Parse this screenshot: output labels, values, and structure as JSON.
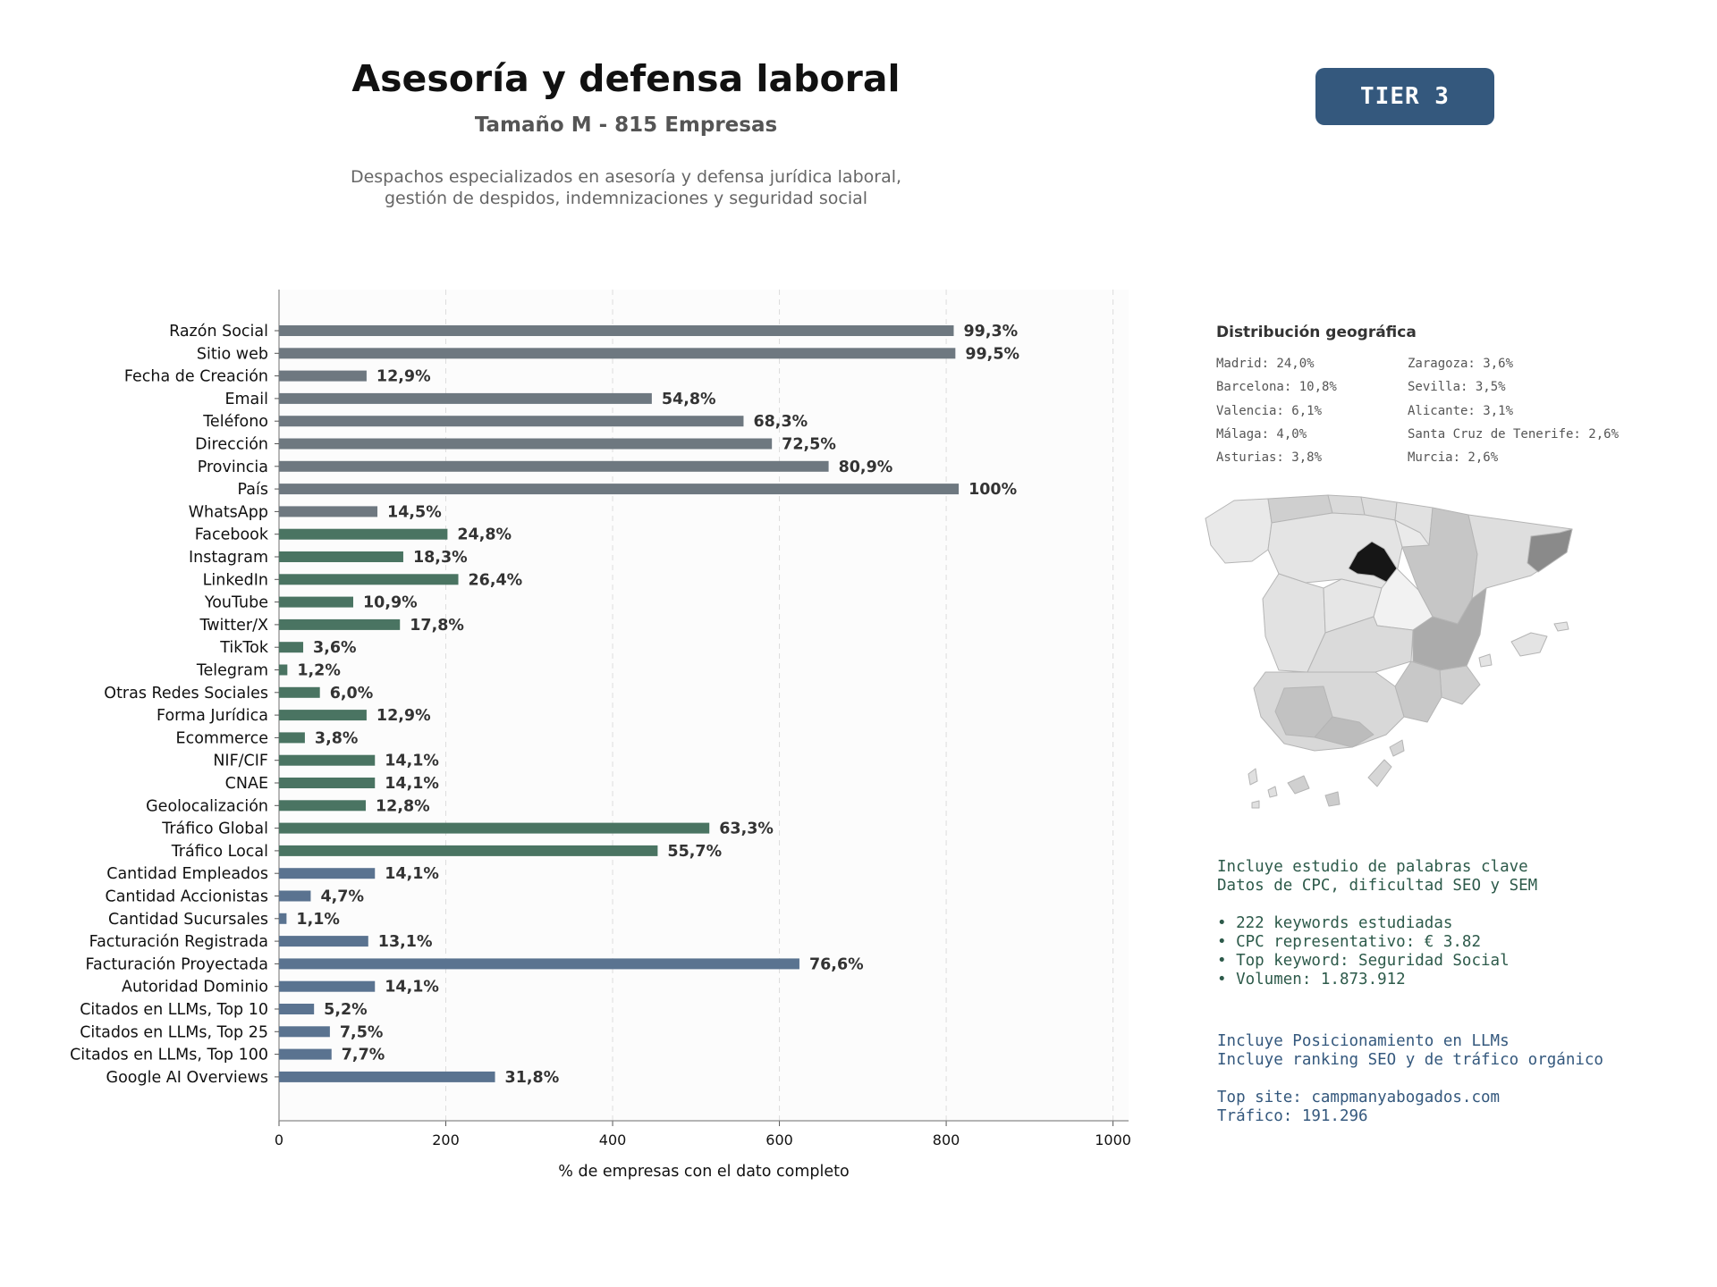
{
  "header": {
    "title": "Asesoría y defensa laboral",
    "subtitle": "Tamaño M - 815 Empresas",
    "description_lines": [
      "Despachos especializados en asesoría y defensa jurídica laboral,",
      "gestión de despidos, indemnizaciones y seguridad social"
    ]
  },
  "tier_badge": "TIER 3",
  "colors": {
    "basic": "#6e7880",
    "social": "#4a7462",
    "business": "#5a7390",
    "keywords_text": "#2d5a4a",
    "llm_text": "#34587d",
    "badge": "#34587d"
  },
  "chart_data": {
    "type": "bar",
    "orientation": "horizontal",
    "xlabel": "% de empresas con el dato completo",
    "xlim": [
      0,
      1000
    ],
    "xticks": [
      0,
      200,
      400,
      600,
      800,
      1000
    ],
    "grid": "vertical dashed",
    "bars": [
      {
        "label": "Razón Social",
        "value": 809,
        "pct": "99,3%",
        "group": "basic"
      },
      {
        "label": "Sitio web",
        "value": 811,
        "pct": "99,5%",
        "group": "basic"
      },
      {
        "label": "Fecha de Creación",
        "value": 105,
        "pct": "12,9%",
        "group": "basic"
      },
      {
        "label": "Email",
        "value": 447,
        "pct": "54,8%",
        "group": "basic"
      },
      {
        "label": "Teléfono",
        "value": 557,
        "pct": "68,3%",
        "group": "basic"
      },
      {
        "label": "Dirección",
        "value": 591,
        "pct": "72,5%",
        "group": "basic"
      },
      {
        "label": "Provincia",
        "value": 659,
        "pct": "80,9%",
        "group": "basic"
      },
      {
        "label": "País",
        "value": 815,
        "pct": "100%",
        "group": "basic"
      },
      {
        "label": "WhatsApp",
        "value": 118,
        "pct": "14,5%",
        "group": "basic"
      },
      {
        "label": "Facebook",
        "value": 202,
        "pct": "24,8%",
        "group": "social"
      },
      {
        "label": "Instagram",
        "value": 149,
        "pct": "18,3%",
        "group": "social"
      },
      {
        "label": "LinkedIn",
        "value": 215,
        "pct": "26,4%",
        "group": "social"
      },
      {
        "label": "YouTube",
        "value": 89,
        "pct": "10,9%",
        "group": "social"
      },
      {
        "label": "Twitter/X",
        "value": 145,
        "pct": "17,8%",
        "group": "social"
      },
      {
        "label": "TikTok",
        "value": 29,
        "pct": "3,6%",
        "group": "social"
      },
      {
        "label": "Telegram",
        "value": 10,
        "pct": "1,2%",
        "group": "social"
      },
      {
        "label": "Otras Redes Sociales",
        "value": 49,
        "pct": "6,0%",
        "group": "social"
      },
      {
        "label": "Forma Jurídica",
        "value": 105,
        "pct": "12,9%",
        "group": "social"
      },
      {
        "label": "Ecommerce",
        "value": 31,
        "pct": "3,8%",
        "group": "social"
      },
      {
        "label": "NIF/CIF",
        "value": 115,
        "pct": "14,1%",
        "group": "social"
      },
      {
        "label": "CNAE",
        "value": 115,
        "pct": "14,1%",
        "group": "social"
      },
      {
        "label": "Geolocalización",
        "value": 104,
        "pct": "12,8%",
        "group": "social"
      },
      {
        "label": "Tráfico Global",
        "value": 516,
        "pct": "63,3%",
        "group": "social"
      },
      {
        "label": "Tráfico Local",
        "value": 454,
        "pct": "55,7%",
        "group": "social"
      },
      {
        "label": "Cantidad Empleados",
        "value": 115,
        "pct": "14,1%",
        "group": "business"
      },
      {
        "label": "Cantidad Accionistas",
        "value": 38,
        "pct": "4,7%",
        "group": "business"
      },
      {
        "label": "Cantidad Sucursales",
        "value": 9,
        "pct": "1,1%",
        "group": "business"
      },
      {
        "label": "Facturación Registrada",
        "value": 107,
        "pct": "13,1%",
        "group": "business"
      },
      {
        "label": "Facturación Proyectada",
        "value": 624,
        "pct": "76,6%",
        "group": "business"
      },
      {
        "label": "Autoridad Dominio",
        "value": 115,
        "pct": "14,1%",
        "group": "business"
      },
      {
        "label": "Citados en LLMs, Top 10",
        "value": 42,
        "pct": "5,2%",
        "group": "business"
      },
      {
        "label": "Citados en LLMs, Top 25",
        "value": 61,
        "pct": "7,5%",
        "group": "business"
      },
      {
        "label": "Citados en LLMs, Top 100",
        "value": 63,
        "pct": "7,7%",
        "group": "business"
      },
      {
        "label": "Google AI Overviews",
        "value": 259,
        "pct": "31,8%",
        "group": "business"
      }
    ]
  },
  "geo": {
    "title": "Distribución geográfica",
    "col1": [
      "Madrid: 24,0%",
      "Barcelona: 10,8%",
      "Valencia: 6,1%",
      "Málaga: 4,0%",
      "Asturias: 3,8%"
    ],
    "col2": [
      "Zaragoza: 3,6%",
      "Sevilla: 3,5%",
      "Alicante: 3,1%",
      "Santa Cruz de Tenerife: 2,6%",
      "Murcia: 2,6%"
    ]
  },
  "keywords": {
    "intro": [
      "Incluye estudio de palabras clave",
      "Datos de CPC, dificultad SEO y SEM"
    ],
    "bullets": [
      "• 222 keywords estudiadas",
      "• CPC representativo: € 3.82",
      "• Top keyword: Seguridad Social",
      "• Volumen: 1.873.912"
    ]
  },
  "llm": {
    "intro": [
      "Incluye Posicionamiento en LLMs",
      "Incluye ranking SEO y de tráfico orgánico"
    ],
    "details": [
      "Top site: campmanyabogados.com",
      "Tráfico: 191.296"
    ]
  }
}
